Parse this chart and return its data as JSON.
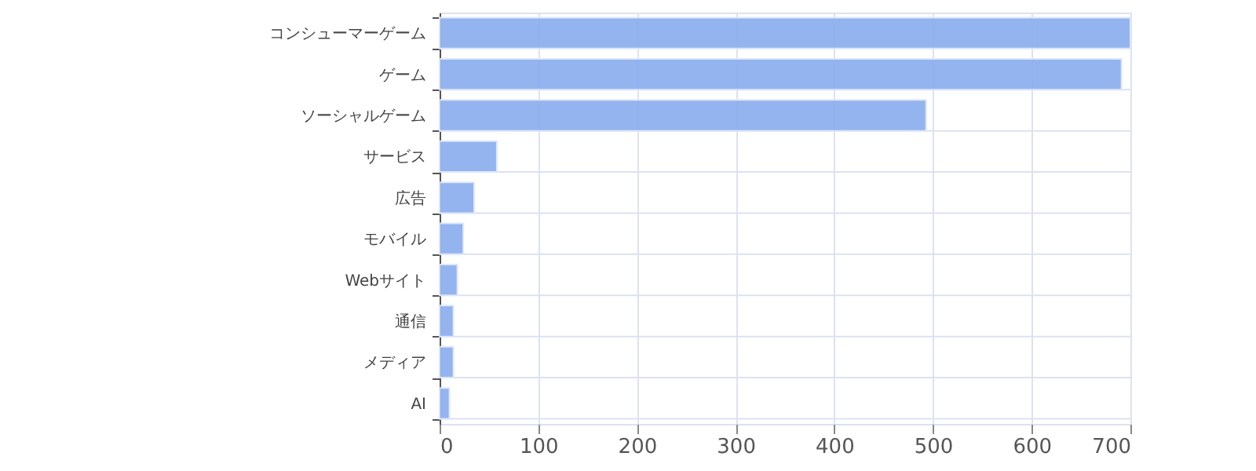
{
  "chart_data": {
    "type": "bar",
    "orientation": "horizontal",
    "categories": [
      "コンシューマーゲーム",
      "ゲーム",
      "ソーシャルゲーム",
      "サービス",
      "広告",
      "モバイル",
      "Webサイト",
      "通信",
      "メディア",
      "AI"
    ],
    "values": [
      700,
      691,
      493,
      58,
      35,
      24,
      18,
      14,
      14,
      10
    ],
    "color": "#8fb0ef",
    "xlim": [
      0,
      700
    ],
    "xticks": [
      0,
      100,
      200,
      300,
      400,
      500,
      600,
      700
    ],
    "grid": true
  }
}
